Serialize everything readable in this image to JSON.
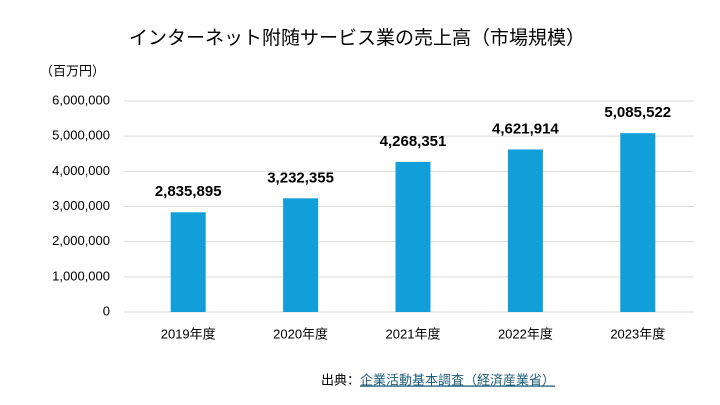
{
  "chart_data": {
    "type": "bar",
    "title": "インターネット附随サービス業の売上高（市場規模）",
    "y_unit": "（百万円）",
    "categories": [
      "2019年度",
      "2020年度",
      "2021年度",
      "2022年度",
      "2023年度"
    ],
    "values": [
      2835895,
      3232355,
      4268351,
      4621914,
      5085522
    ],
    "value_labels": [
      "2,835,895",
      "3,232,355",
      "4,268,351",
      "4,621,914",
      "5,085,522"
    ],
    "color": "#129fd9",
    "ylim": [
      0,
      6000000
    ],
    "yticks": [
      0,
      {
        "value": 1000000,
        "label": "1,000,000"
      },
      {
        "value": 2000000,
        "label": "2,000,000"
      },
      {
        "value": 3000000,
        "label": "3,000,000"
      },
      {
        "value": 4000000,
        "label": "4,000,000"
      },
      {
        "value": 5000000,
        "label": "5,000,000"
      },
      {
        "value": 6000000,
        "label": "6,000,000"
      }
    ],
    "grid": true,
    "source_label": "出典：",
    "source": "企業活動基本調査（経済産業省）"
  }
}
